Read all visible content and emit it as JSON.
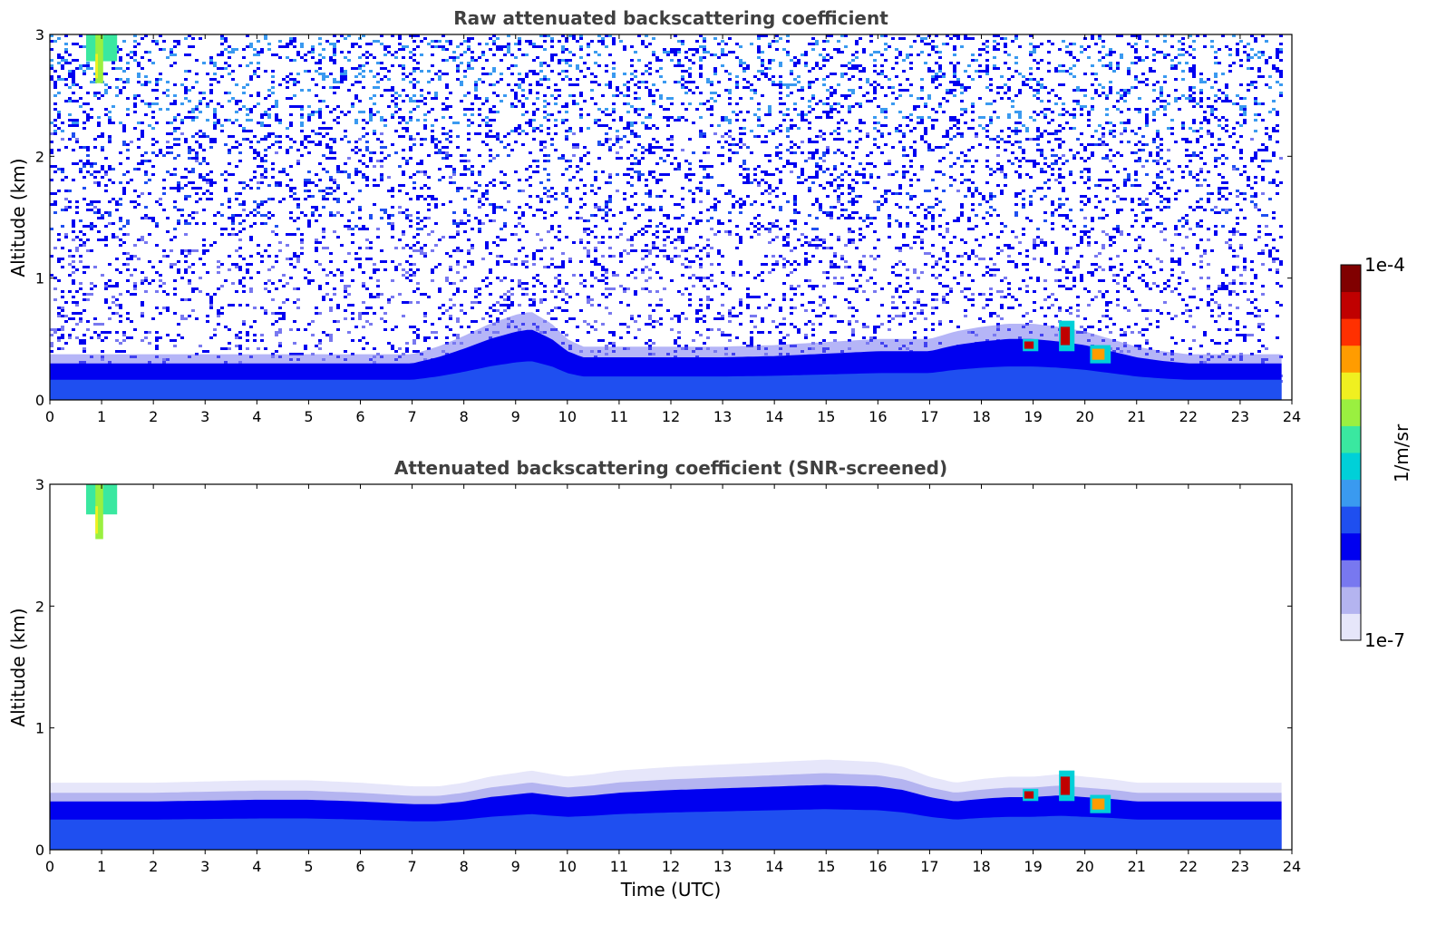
{
  "colormap": [
    "#e6e6fa",
    "#b4b4f0",
    "#7878f0",
    "#0000f0",
    "#1f4ff0",
    "#3a9af0",
    "#00d0d8",
    "#3ae8a0",
    "#9af040",
    "#f0f020",
    "#ff9c00",
    "#ff3000",
    "#c00000",
    "#800000"
  ],
  "chart_data": [
    {
      "type": "heatmap",
      "title": "Raw attenuated backscattering coefficient",
      "xlabel": "",
      "ylabel": "Altitude (km)",
      "xlim": [
        0,
        24
      ],
      "ylim": [
        0,
        3
      ],
      "xticks": [
        "0",
        "1",
        "2",
        "3",
        "4",
        "5",
        "6",
        "7",
        "8",
        "9",
        "10",
        "11",
        "12",
        "13",
        "14",
        "15",
        "16",
        "17",
        "18",
        "19",
        "20",
        "21",
        "22",
        "23",
        "24"
      ],
      "yticks": [
        "0",
        "1",
        "2",
        "3"
      ],
      "data_end_time": 23.8,
      "boundary_layer_top_km": {
        "x": [
          0,
          1,
          2,
          3,
          4,
          5,
          6,
          7,
          7.5,
          8,
          8.5,
          9,
          9.3,
          9.7,
          10,
          10.3,
          11,
          12,
          13,
          14,
          15,
          16,
          17,
          17.5,
          18,
          18.5,
          19,
          19.5,
          20,
          20.5,
          21,
          21.5,
          22,
          22.5,
          23,
          23.8
        ],
        "y": [
          0.3,
          0.3,
          0.3,
          0.3,
          0.3,
          0.3,
          0.3,
          0.3,
          0.35,
          0.42,
          0.5,
          0.56,
          0.58,
          0.5,
          0.4,
          0.35,
          0.35,
          0.35,
          0.35,
          0.36,
          0.38,
          0.4,
          0.4,
          0.45,
          0.48,
          0.5,
          0.5,
          0.48,
          0.45,
          0.4,
          0.35,
          0.32,
          0.3,
          0.3,
          0.3,
          0.3
        ]
      },
      "noise": "high",
      "features": [
        {
          "kind": "cirrus",
          "x_range": [
            0.7,
            1.3
          ],
          "altitude_km": [
            2.6,
            3.0
          ],
          "value_level": "1e-5"
        },
        {
          "kind": "strong-return",
          "x_range": [
            18.8,
            19.1
          ],
          "altitude_km": [
            0.4,
            0.5
          ],
          "value_level": "1e-4"
        },
        {
          "kind": "strong-return",
          "x_range": [
            19.5,
            19.8
          ],
          "altitude_km": [
            0.4,
            0.65
          ],
          "value_level": "1e-4"
        },
        {
          "kind": "strong-return",
          "x_range": [
            20.1,
            20.5
          ],
          "altitude_km": [
            0.3,
            0.45
          ],
          "value_level": "5e-5"
        }
      ]
    },
    {
      "type": "heatmap",
      "title": "Attenuated backscattering coefficient (SNR-screened)",
      "xlabel": "Time (UTC)",
      "ylabel": "Altitude (km)",
      "xlim": [
        0,
        24
      ],
      "ylim": [
        0,
        3
      ],
      "xticks": [
        "0",
        "1",
        "2",
        "3",
        "4",
        "5",
        "6",
        "7",
        "8",
        "9",
        "10",
        "11",
        "12",
        "13",
        "14",
        "15",
        "16",
        "17",
        "18",
        "19",
        "20",
        "21",
        "22",
        "23",
        "24"
      ],
      "yticks": [
        "0",
        "1",
        "2",
        "3"
      ],
      "data_end_time": 23.8,
      "boundary_layer_top_km": {
        "x": [
          0,
          1,
          2,
          3,
          4,
          5,
          6,
          7,
          7.5,
          8,
          8.5,
          9,
          9.3,
          9.7,
          10,
          10.5,
          11,
          12,
          13,
          14,
          15,
          16,
          16.5,
          17,
          17.5,
          18,
          18.5,
          19,
          19.5,
          20,
          20.5,
          21,
          21.5,
          22,
          22.5,
          23,
          23.8
        ],
        "y": [
          0.55,
          0.55,
          0.55,
          0.56,
          0.57,
          0.57,
          0.55,
          0.52,
          0.52,
          0.55,
          0.6,
          0.63,
          0.65,
          0.62,
          0.6,
          0.62,
          0.65,
          0.68,
          0.7,
          0.72,
          0.74,
          0.72,
          0.68,
          0.6,
          0.55,
          0.58,
          0.6,
          0.6,
          0.62,
          0.6,
          0.58,
          0.55,
          0.55,
          0.55,
          0.55,
          0.55,
          0.55
        ]
      },
      "noise": "screened",
      "features": [
        {
          "kind": "cirrus",
          "x_range": [
            0.7,
            1.3
          ],
          "altitude_km": [
            2.55,
            3.0
          ],
          "value_level": "1e-5"
        },
        {
          "kind": "strong-return",
          "x_range": [
            18.8,
            19.1
          ],
          "altitude_km": [
            0.4,
            0.5
          ],
          "value_level": "1e-4"
        },
        {
          "kind": "strong-return",
          "x_range": [
            19.5,
            19.8
          ],
          "altitude_km": [
            0.4,
            0.65
          ],
          "value_level": "1e-4"
        },
        {
          "kind": "strong-return",
          "x_range": [
            20.1,
            20.5
          ],
          "altitude_km": [
            0.3,
            0.45
          ],
          "value_level": "5e-5"
        }
      ]
    }
  ],
  "colorbar": {
    "max_label": "1e-4",
    "min_label": "1e-7",
    "unit_label": "1/m/sr"
  }
}
